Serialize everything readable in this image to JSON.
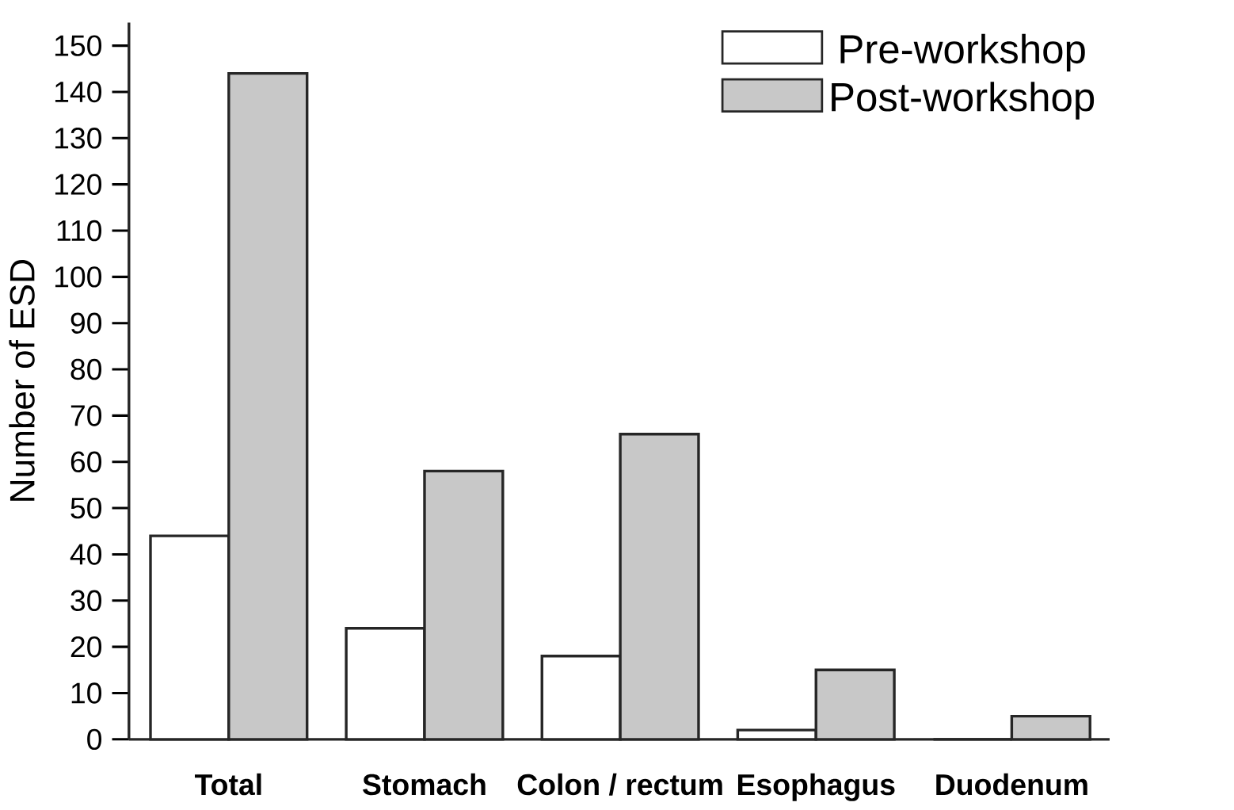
{
  "chart_data": {
    "type": "bar",
    "ylabel": "Number of ESD",
    "categories": [
      "Total",
      "Stomach",
      "Colon / rectum",
      "Esophagus",
      "Duodenum"
    ],
    "series": [
      {
        "name": "Pre-workshop",
        "color": "#ffffff",
        "values": [
          44,
          24,
          18,
          2,
          0
        ]
      },
      {
        "name": "Post-workshop",
        "color": "#c8c8c8",
        "values": [
          144,
          58,
          66,
          15,
          5
        ]
      }
    ],
    "ylim": [
      0,
      155
    ],
    "yticks": [
      0,
      10,
      20,
      30,
      40,
      50,
      60,
      70,
      80,
      90,
      100,
      110,
      120,
      130,
      140,
      150
    ],
    "legend": "top right",
    "grid": false
  }
}
